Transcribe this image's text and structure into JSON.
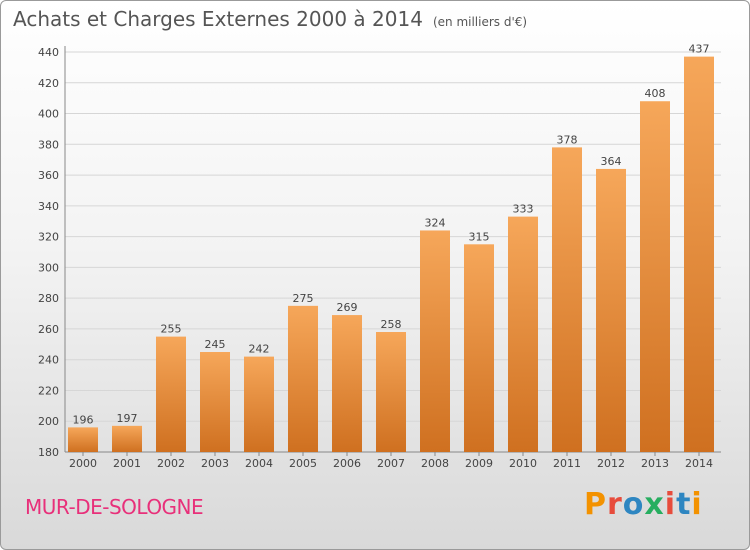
{
  "header": {
    "title": "Achats et Charges Externes 2000 à 2014",
    "unit": "(en milliers d'€)"
  },
  "footer": {
    "commune": "MUR-DE-SOLOGNE",
    "brand": "Proxiti"
  },
  "colors": {
    "bar_light": "#f6a75a",
    "bar_dark": "#cf7020",
    "grid": "#d6d6d6",
    "commune": "#e8307a",
    "brand_letters": [
      "#f39200",
      "#e74c3c",
      "#2e86c1",
      "#27ae60",
      "#e74c3c",
      "#2e86c1",
      "#f39200"
    ]
  },
  "chart_data": {
    "type": "bar",
    "categories": [
      "2000",
      "2001",
      "2002",
      "2003",
      "2004",
      "2005",
      "2006",
      "2007",
      "2008",
      "2009",
      "2010",
      "2011",
      "2012",
      "2013",
      "2014"
    ],
    "values": [
      196,
      197,
      255,
      245,
      242,
      275,
      269,
      258,
      324,
      315,
      333,
      378,
      364,
      408,
      437
    ],
    "ylim": [
      180,
      440
    ],
    "yticks": [
      180,
      200,
      220,
      240,
      260,
      280,
      300,
      320,
      340,
      360,
      380,
      400,
      420,
      440
    ],
    "grid": true
  }
}
